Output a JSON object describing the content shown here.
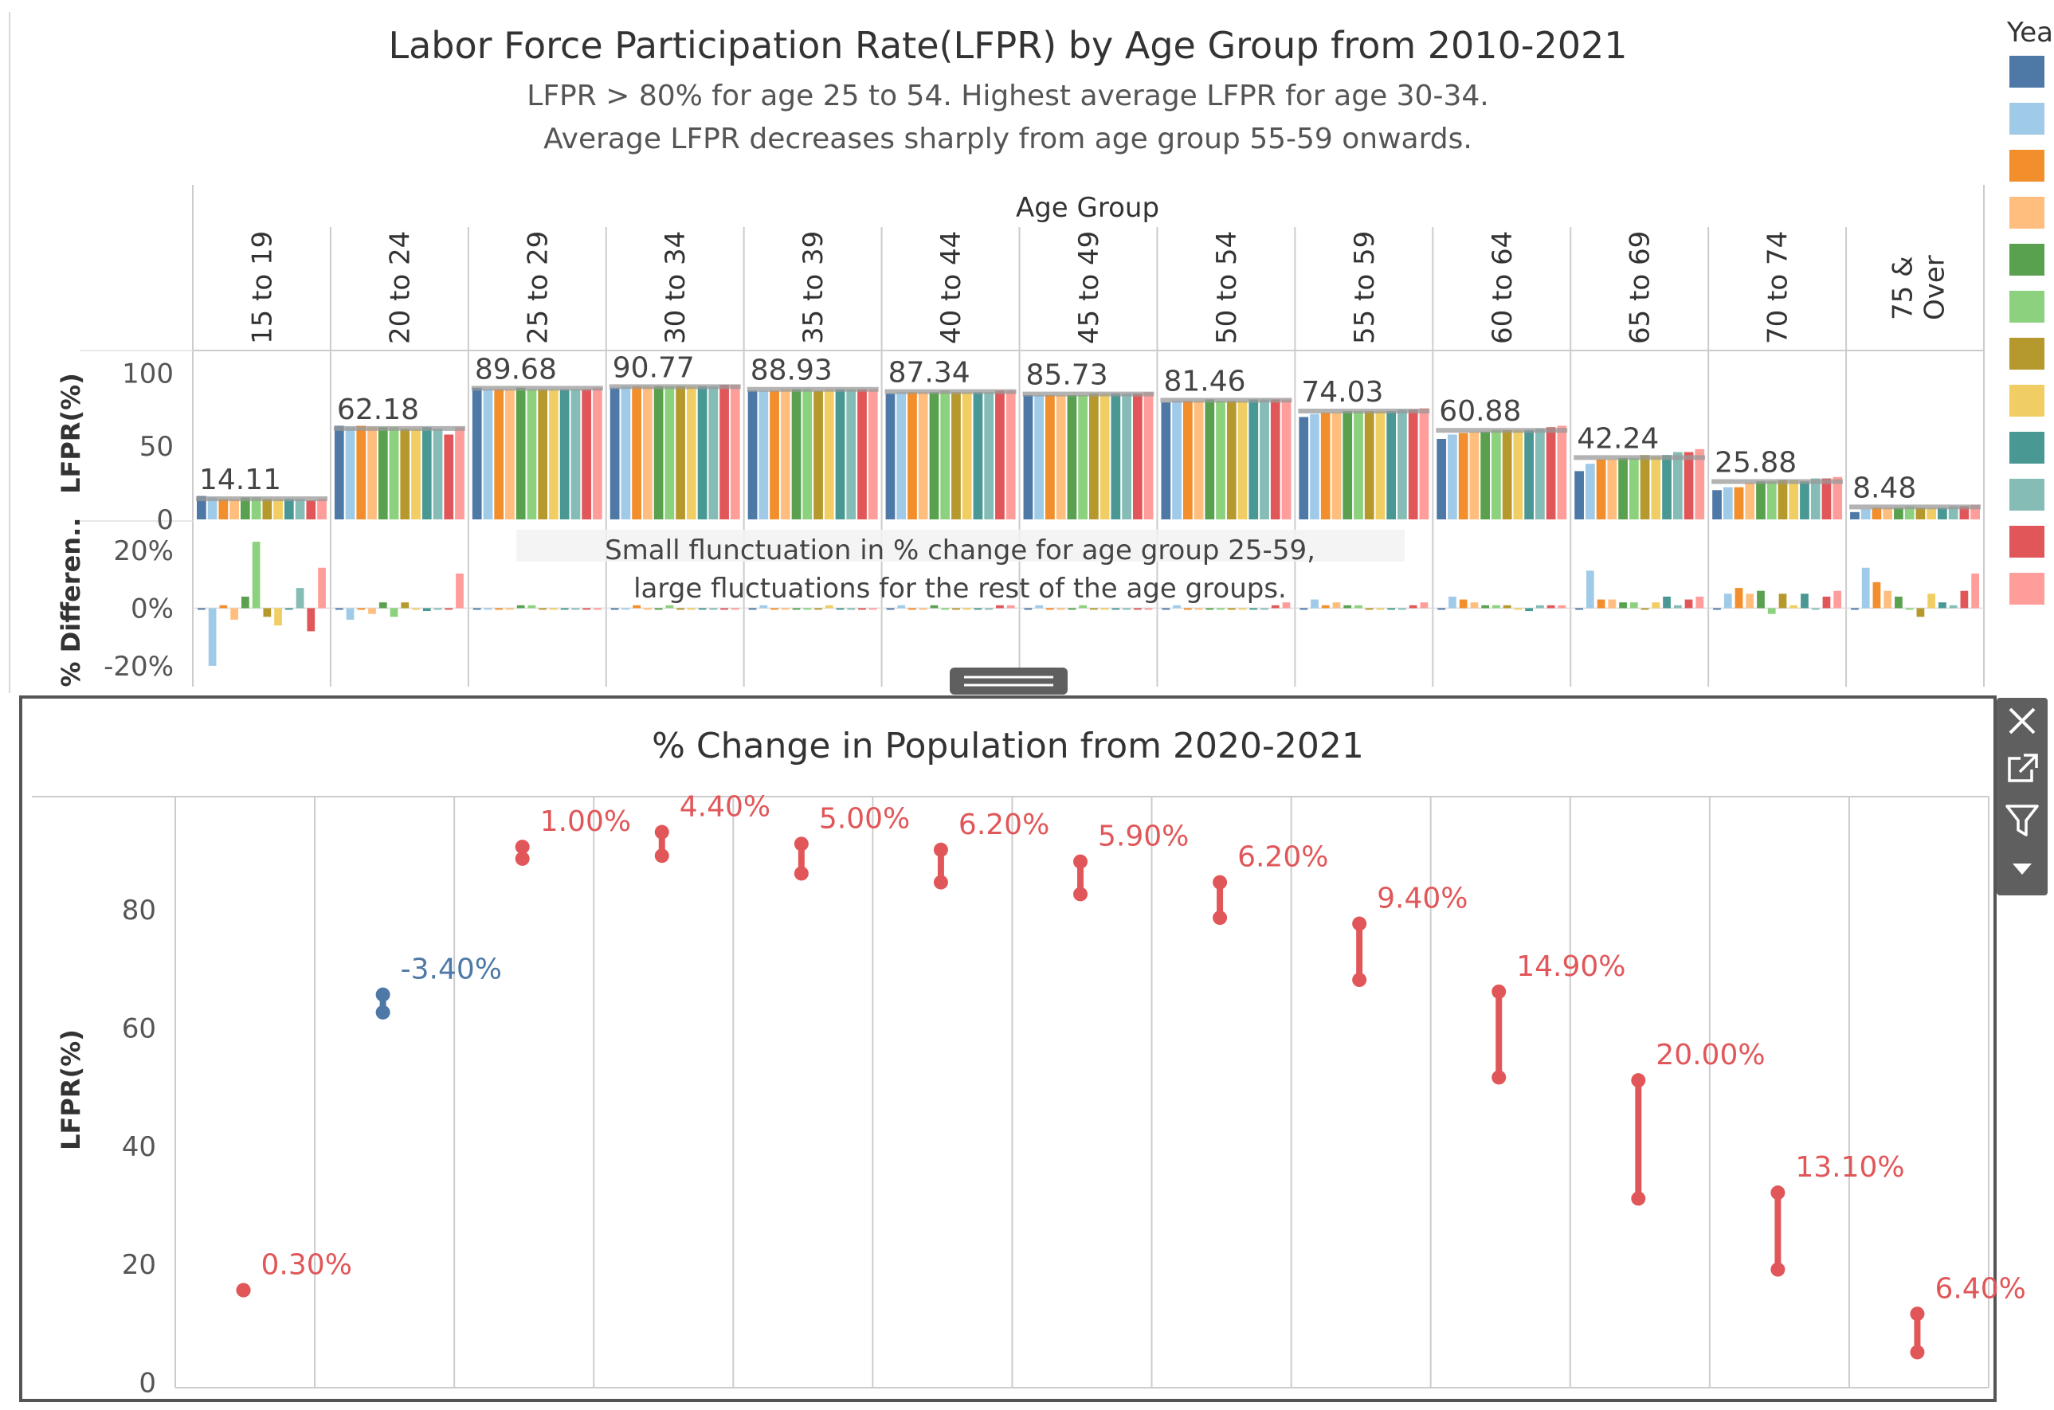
{
  "header": {
    "title": "Labor Force Participation Rate(LFPR) by Age Group from 2010-2021",
    "subtitle_1": "LFPR > 80% for age 25 to 54. Highest average LFPR for age 30-34.",
    "subtitle_2": "Average LFPR decreases  sharply from age group 55-59 onwards."
  },
  "legend": {
    "title": "Yea",
    "colors": [
      "#4e79a7",
      "#a0cbe8",
      "#f28e2b",
      "#ffbe7d",
      "#59a14f",
      "#8cd17d",
      "#b6992d",
      "#f1ce63",
      "#499894",
      "#86bcb6",
      "#e15759",
      "#ff9d9a"
    ]
  },
  "toolbar": {
    "icons": [
      "close-icon",
      "popout-icon",
      "filter-icon",
      "dropdown-icon"
    ]
  },
  "chart_data": [
    {
      "type": "bar",
      "title": "",
      "column_header": "Age Group",
      "categories": [
        "15 to 19",
        "20 to 24",
        "25 to 29",
        "30 to 34",
        "35 to 39",
        "40 to 44",
        "45 to 49",
        "50 to 54",
        "55 to 59",
        "60 to 64",
        "65 to 69",
        "70 to 74",
        "75 & Over"
      ],
      "ylabel": "LFPR(%)",
      "yticks": [
        "100",
        "50",
        "0"
      ],
      "ylim": [
        0,
        110
      ],
      "averages": [
        14.11,
        62.18,
        89.68,
        90.77,
        88.93,
        87.34,
        85.73,
        81.46,
        74.03,
        60.88,
        42.24,
        25.88,
        8.48
      ],
      "average_labels": [
        "14.11",
        "62.18",
        "89.68",
        "90.77",
        "88.93",
        "87.34",
        "85.73",
        "81.46",
        "74.03",
        "60.88",
        "42.24",
        "25.88",
        "8.48"
      ],
      "series_per_category": 12,
      "values": [
        [
          16,
          15,
          14,
          14,
          15,
          15,
          14,
          14,
          14,
          14,
          13,
          14
        ],
        [
          64,
          63,
          64,
          63,
          63,
          63,
          62,
          62,
          63,
          62,
          58,
          63
        ],
        [
          90,
          89,
          89,
          89,
          90,
          89,
          89,
          89,
          89,
          89,
          89,
          90
        ],
        [
          90,
          91,
          91,
          91,
          91,
          91,
          91,
          91,
          91,
          91,
          92,
          92
        ],
        [
          88,
          88,
          88,
          89,
          89,
          89,
          88,
          89,
          89,
          89,
          89,
          89
        ],
        [
          86,
          87,
          87,
          87,
          87,
          88,
          87,
          87,
          87,
          87,
          88,
          88
        ],
        [
          85,
          85,
          85,
          85,
          85,
          85,
          86,
          86,
          86,
          86,
          86,
          87
        ],
        [
          80,
          81,
          81,
          81,
          82,
          81,
          81,
          81,
          82,
          82,
          82,
          82
        ],
        [
          70,
          72,
          73,
          73,
          74,
          74,
          74,
          74,
          74,
          75,
          75,
          76
        ],
        [
          55,
          58,
          59,
          60,
          60,
          61,
          61,
          61,
          61,
          62,
          63,
          64
        ],
        [
          33,
          38,
          41,
          41,
          42,
          42,
          44,
          43,
          44,
          46,
          46,
          48
        ],
        [
          20,
          22,
          22,
          25,
          26,
          26,
          27,
          27,
          26,
          28,
          28,
          29
        ],
        [
          5,
          7,
          8,
          8,
          8,
          9,
          8,
          8,
          8,
          9,
          9,
          10
        ]
      ]
    },
    {
      "type": "bar",
      "title": "",
      "ylabel": "% Differen..",
      "yticks": [
        "20%",
        "0%",
        "-20%"
      ],
      "ylim": [
        -25,
        28
      ],
      "annotation_1": "Small flunctuation in % change for age group 25-59,",
      "annotation_2": "large fluctuations for the rest of the age groups.",
      "values": [
        [
          -0.5,
          -20,
          1,
          -4,
          4,
          23,
          -3,
          -6,
          0,
          7,
          -8,
          14
        ],
        [
          0,
          -4,
          0,
          -2,
          2,
          -3,
          2,
          0,
          -1,
          0,
          0,
          12
        ],
        [
          0,
          0,
          0,
          0,
          1,
          1,
          0,
          0,
          0,
          0,
          0,
          0
        ],
        [
          0,
          0,
          1,
          0,
          0,
          1,
          0,
          0,
          0,
          0,
          0,
          0
        ],
        [
          0,
          1,
          0,
          0,
          0,
          0,
          0,
          1,
          0,
          0,
          0,
          0
        ],
        [
          0,
          1,
          0,
          0,
          1,
          0,
          0,
          0,
          0,
          0,
          1,
          1
        ],
        [
          0,
          1,
          0,
          0,
          0,
          1,
          0,
          0,
          0,
          0,
          0,
          0
        ],
        [
          0,
          1,
          0,
          0,
          0,
          0,
          0,
          0,
          0,
          0,
          1,
          2
        ],
        [
          0,
          3,
          1,
          2,
          1,
          1,
          0,
          0,
          0,
          0,
          1,
          2
        ],
        [
          0,
          4,
          3,
          2,
          1,
          1,
          1,
          0,
          -1,
          1,
          1,
          1
        ],
        [
          0,
          13,
          3,
          3,
          2,
          2,
          0,
          2,
          4,
          1,
          3,
          4
        ],
        [
          0,
          5,
          7,
          5,
          6,
          -2,
          5,
          1,
          5,
          0,
          4,
          6
        ],
        [
          0,
          14,
          9,
          6,
          4,
          0,
          -3,
          5,
          2,
          1,
          6,
          12
        ]
      ]
    },
    {
      "type": "dumbbell",
      "title": "% Change in Population from 2020-2021",
      "ylabel": "LFPR(%)",
      "yticks": [
        "80",
        "60",
        "40",
        "20",
        "0"
      ],
      "ylim": [
        -1,
        99
      ],
      "x": [
        "15 to 19",
        "20 to 24",
        "25 to 29",
        "30 to 34",
        "35 to 39",
        "40 to 44",
        "45 to 49",
        "50 to 54",
        "55 to 59",
        "60 to 64",
        "65 to 69",
        "70 to 74",
        "75 & Over"
      ],
      "start": [
        15.5,
        65.5,
        90.5,
        93.0,
        91.0,
        90.0,
        88.0,
        84.5,
        77.5,
        66.0,
        51.0,
        32.0,
        11.5
      ],
      "end": [
        15.5,
        62.5,
        88.5,
        89.0,
        86.0,
        84.5,
        82.5,
        78.5,
        68.0,
        51.5,
        31.0,
        19.0,
        5.0
      ],
      "labels": [
        "0.30%",
        "-3.40%",
        "1.00%",
        "4.40%",
        "5.00%",
        "6.20%",
        "5.90%",
        "6.20%",
        "9.40%",
        "14.90%",
        "20.00%",
        "13.10%",
        "6.40%"
      ],
      "colors": {
        "positive": "#e15759",
        "negative": "#4e79a7"
      }
    }
  ]
}
